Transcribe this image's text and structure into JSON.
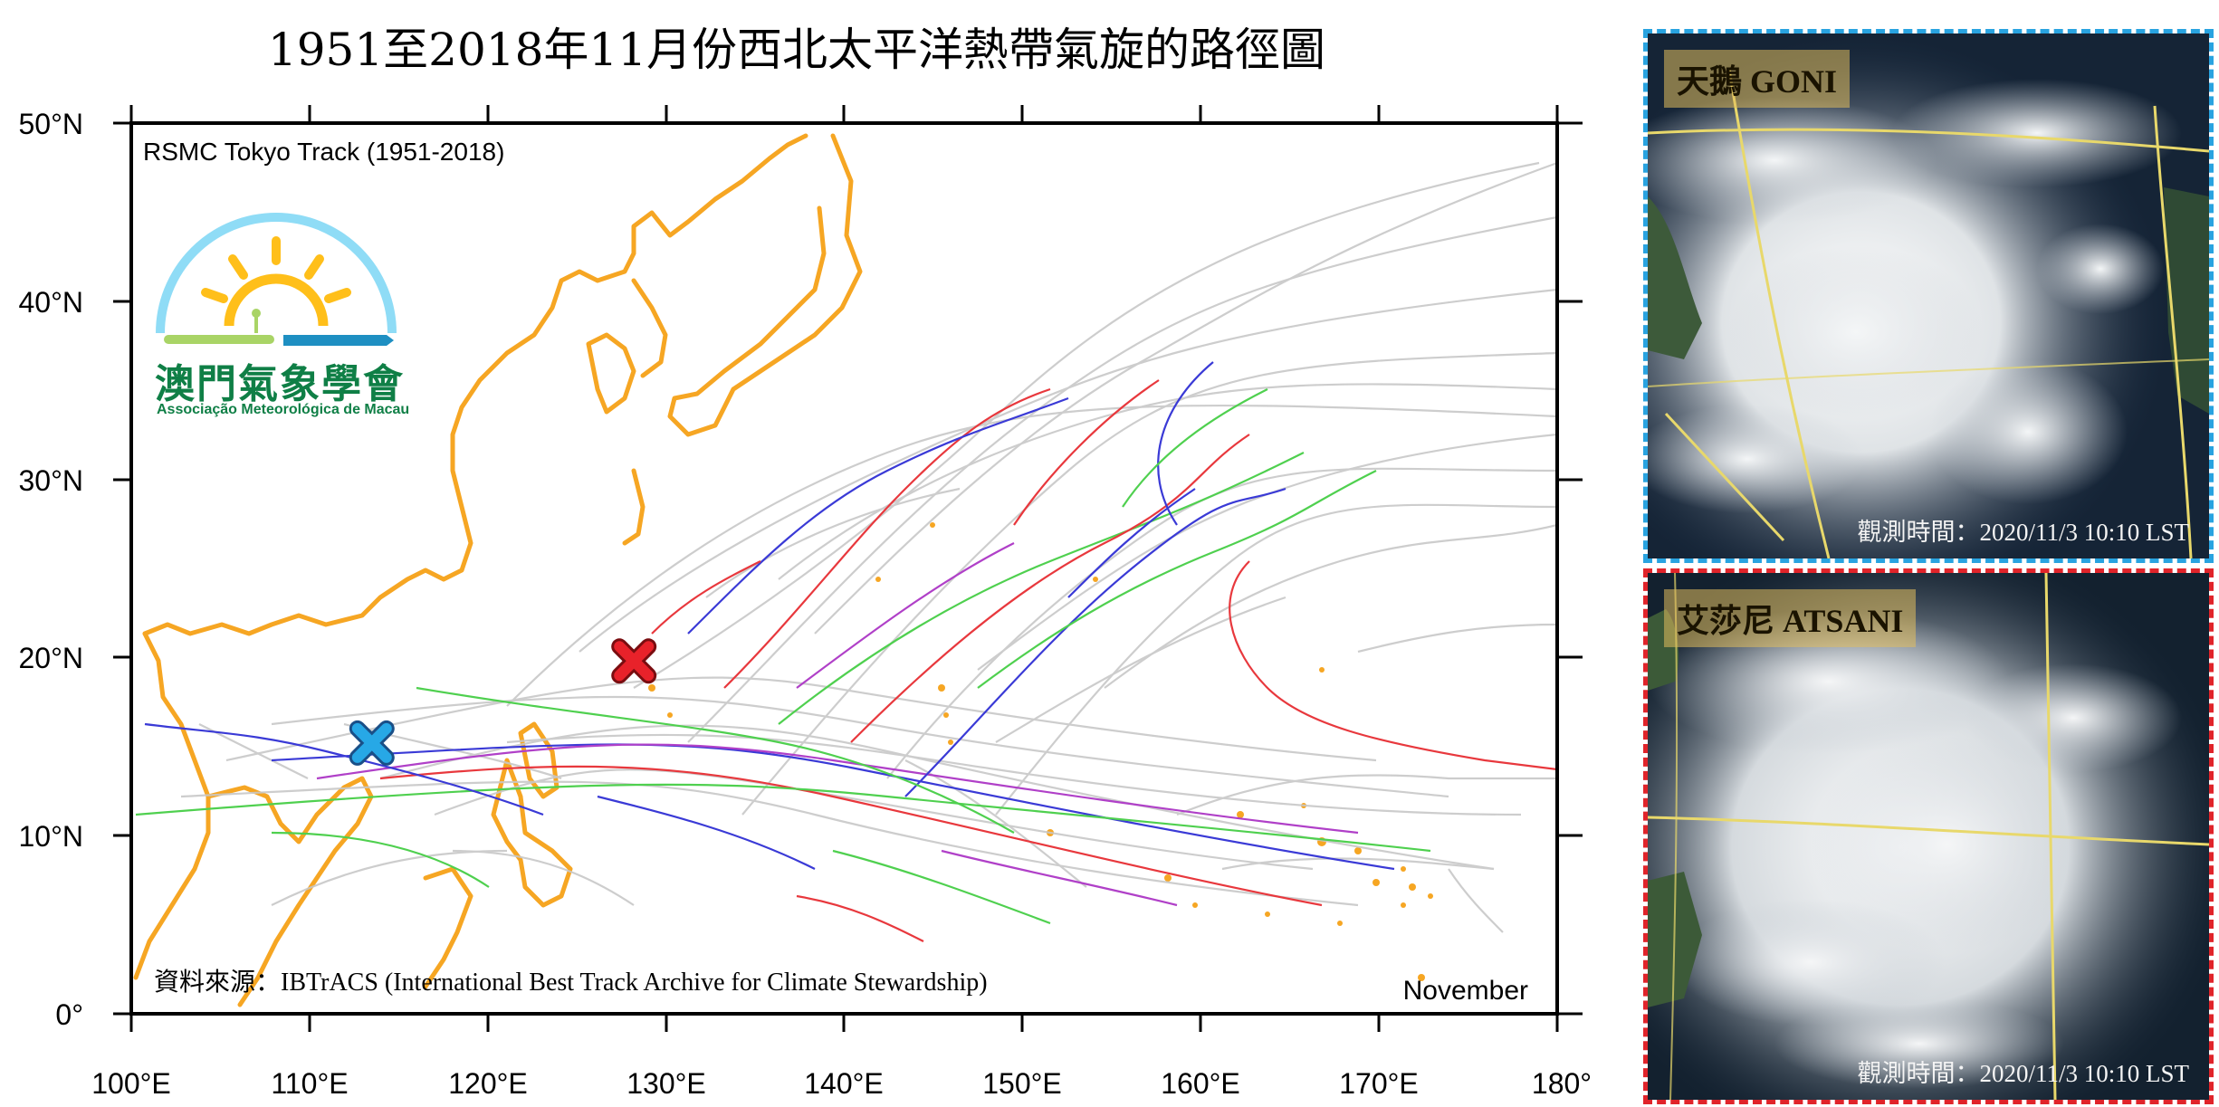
{
  "title": "1951至2018年11月份西北太平洋熱帶氣旋的路徑圖",
  "map": {
    "subtitle": "RSMC Tokyo Track (1951-2018)",
    "source": "資料來源：IBTrACS (International Best Track Archive for Climate Stewardship)",
    "month_label": "November",
    "lon_ticks": [
      "100°E",
      "110°E",
      "120°E",
      "130°E",
      "140°E",
      "150°E",
      "160°E",
      "170°E",
      "180°"
    ],
    "lat_ticks": [
      "0°",
      "10°N",
      "20°N",
      "30°N",
      "40°N",
      "50°N"
    ],
    "lon_range": [
      100,
      180
    ],
    "lat_range": [
      0,
      50
    ],
    "track_colors": {
      "land": "#f6a623",
      "historic": "#c8c8c8",
      "red": "#e8383d",
      "blue": "#3a3ad6",
      "green": "#4fd04f",
      "purple": "#b040c8"
    },
    "markers": [
      {
        "name": "Goni",
        "lon": 113.5,
        "lat": 15.2,
        "color": "#27a8e6"
      },
      {
        "name": "Atsani",
        "lon": 128.2,
        "lat": 19.8,
        "color": "#e8222a"
      }
    ]
  },
  "logo": {
    "name_cn": "澳門氣象學會",
    "name_pt": "Associação Meteorológica de Macau"
  },
  "satellite": [
    {
      "label": "天鵝 GONI",
      "obs_time": "觀測時間：2020/11/3 10:10 LST",
      "border_color": "#29a3e0"
    },
    {
      "label": "艾莎尼 ATSANI",
      "obs_time": "觀測時間：2020/11/3 10:10 LST",
      "border_color": "#e0242a"
    }
  ]
}
